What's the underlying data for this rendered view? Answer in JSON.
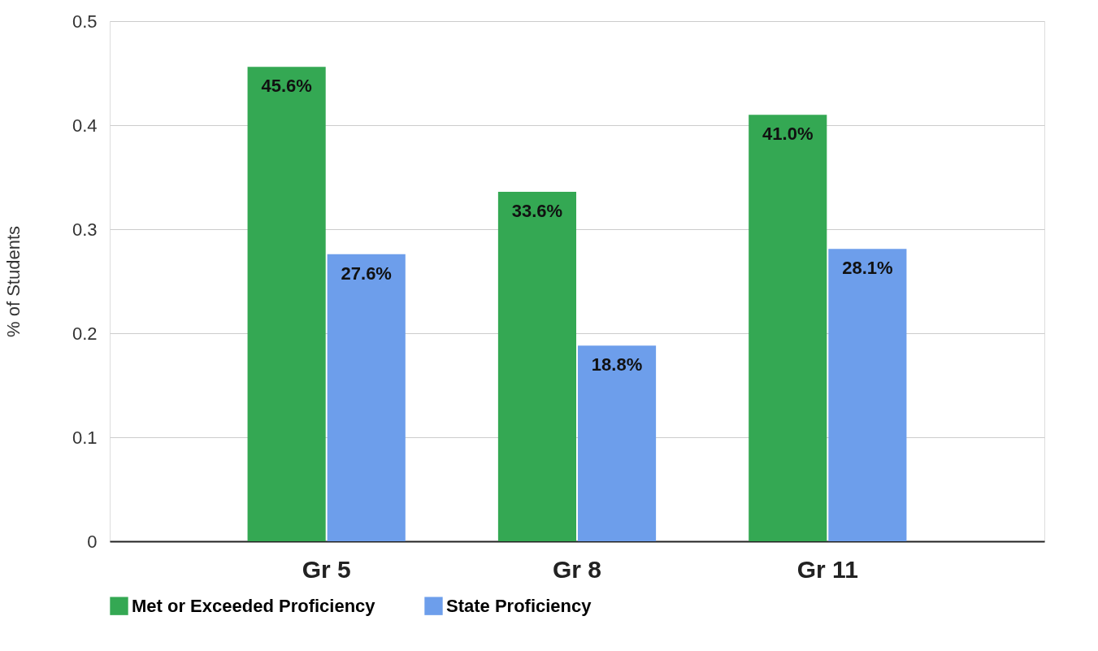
{
  "chart_data": {
    "type": "bar",
    "ylabel": "% of Students",
    "categories": [
      "Gr 5",
      "Gr 8",
      "Gr 11"
    ],
    "series": [
      {
        "name": "Met or Exceeded Proficiency",
        "color": "#34a853",
        "values": [
          0.456,
          0.336,
          0.41
        ],
        "value_labels": [
          "45.6%",
          "33.6%",
          "41.0%"
        ]
      },
      {
        "name": "State Proficiency",
        "color": "#6d9eeb",
        "values": [
          0.276,
          0.188,
          0.281
        ],
        "value_labels": [
          "27.6%",
          "18.8%",
          "28.1%"
        ]
      }
    ],
    "ylim": [
      0,
      0.5
    ],
    "yticks": [
      0,
      0.1,
      0.2,
      0.3,
      0.4,
      0.5
    ],
    "grid": "y",
    "legend": "bottom"
  }
}
